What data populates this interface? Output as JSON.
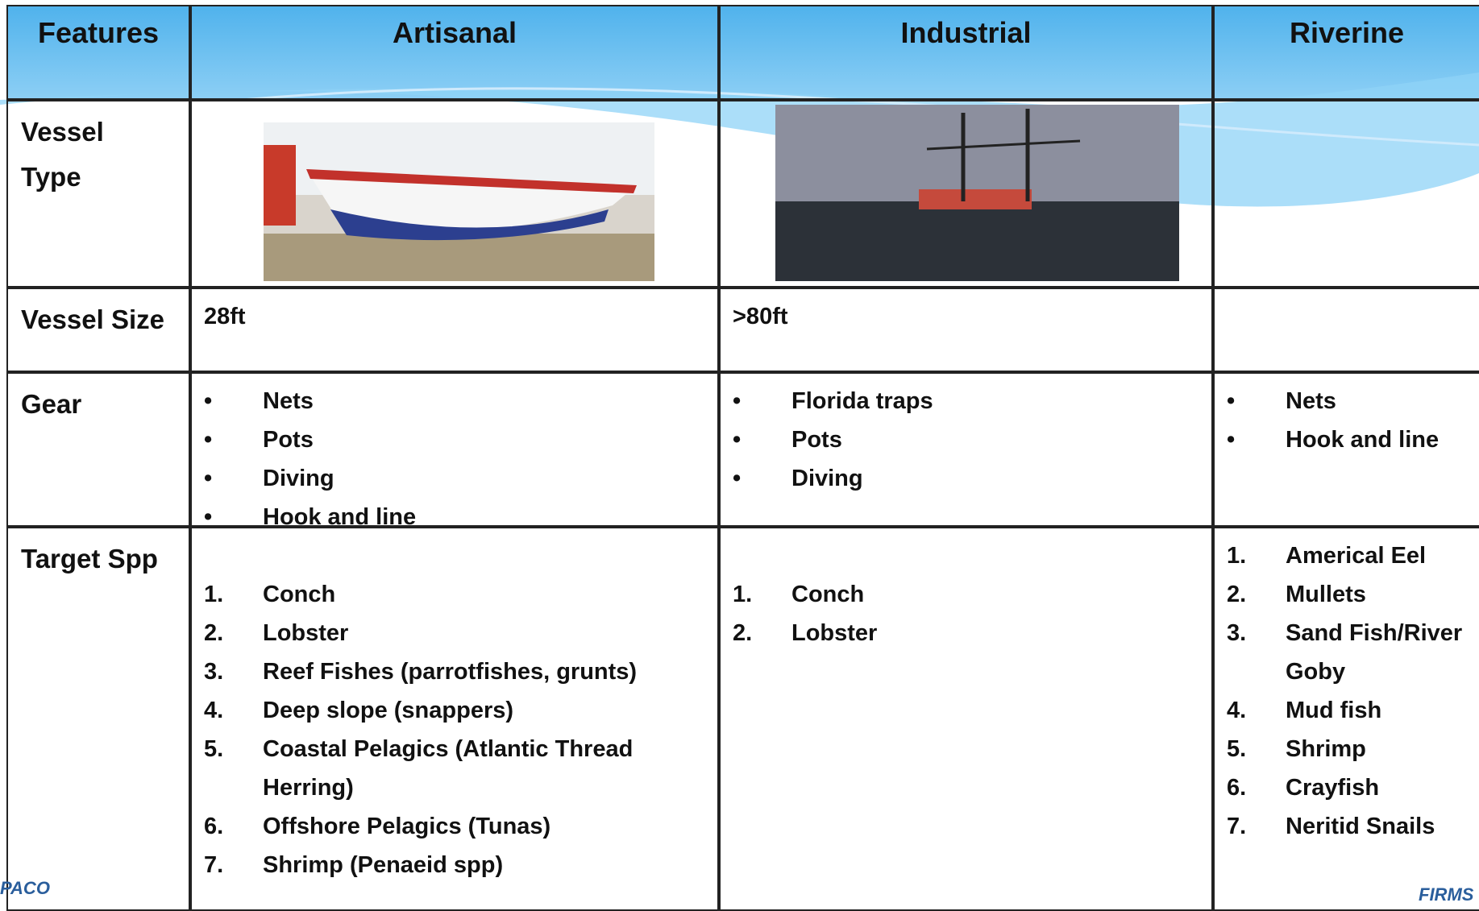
{
  "table": {
    "header": [
      "Features",
      "Artisanal",
      "Industrial",
      "Riverine"
    ],
    "rows": [
      {
        "feature": "Vessel Type"
      },
      {
        "feature": "Vessel Size",
        "artisanal": "28ft",
        "industrial": ">80ft"
      },
      {
        "feature": "Gear",
        "artisanal": [
          "Nets",
          "Pots",
          "Diving",
          "Hook and line"
        ],
        "industrial": [
          "Florida traps",
          "Pots",
          "Diving"
        ],
        "riverine": [
          "Nets",
          "Hook and line"
        ]
      },
      {
        "feature": "Target Spp",
        "artisanal": [
          {
            "num": "1.",
            "text": "Conch"
          },
          {
            "num": "2.",
            "text": "Lobster"
          },
          {
            "num": "3.",
            "text": "Reef Fishes (parrotfishes, grunts)"
          },
          {
            "num": "4.",
            "text": "Deep slope (snappers)"
          },
          {
            "num": "5.",
            "text": "Coastal Pelagics (Atlantic Thread Herring)"
          },
          {
            "num": "6.",
            "text": "Offshore Pelagics (Tunas)"
          },
          {
            "num": "7.",
            "text": "Shrimp (Penaeid spp)"
          }
        ],
        "industrial": [
          {
            "num": "1.",
            "text": "Conch"
          },
          {
            "num": "2.",
            "text": "Lobster"
          }
        ],
        "riverine": [
          {
            "num": "1.",
            "text": "Americal Eel"
          },
          {
            "num": "2.",
            "text": "Mullets"
          },
          {
            "num": "3.",
            "text": "Sand Fish/River Goby"
          },
          {
            "num": "4.",
            "text": "Mud fish"
          },
          {
            "num": "5.",
            "text": "Shrimp"
          },
          {
            "num": "6.",
            "text": "Crayfish"
          },
          {
            "num": "7.",
            "text": "Neritid Snails"
          }
        ]
      }
    ]
  },
  "footer": {
    "left_logo": "PACO",
    "right_logo": "FIRMS"
  }
}
